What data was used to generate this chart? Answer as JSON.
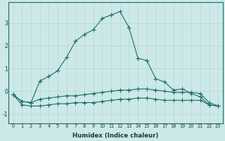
{
  "xlabel": "Humidex (Indice chaleur)",
  "ylabel": "",
  "background_color": "#cce8e8",
  "grid_color": "#b8d8d8",
  "line_color": "#1a6e64",
  "x_values": [
    0,
    1,
    2,
    3,
    4,
    5,
    6,
    7,
    8,
    9,
    10,
    11,
    12,
    13,
    14,
    15,
    16,
    17,
    18,
    19,
    20,
    21,
    22,
    23
  ],
  "series1": [
    -0.15,
    -0.45,
    -0.5,
    0.45,
    0.65,
    0.9,
    1.5,
    2.2,
    2.5,
    2.7,
    3.2,
    3.35,
    3.5,
    2.8,
    1.45,
    1.35,
    0.55,
    0.4,
    0.05,
    0.1,
    -0.1,
    -0.25,
    -0.6,
    -0.65
  ],
  "series2": [
    -0.15,
    -0.45,
    -0.5,
    -0.35,
    -0.3,
    -0.25,
    -0.2,
    -0.2,
    -0.15,
    -0.1,
    -0.05,
    -0.0,
    0.05,
    0.05,
    0.1,
    0.1,
    0.05,
    0.0,
    -0.05,
    -0.05,
    -0.05,
    -0.1,
    -0.5,
    -0.65
  ],
  "series3": [
    -0.15,
    -0.6,
    -0.65,
    -0.65,
    -0.6,
    -0.55,
    -0.55,
    -0.5,
    -0.5,
    -0.5,
    -0.45,
    -0.4,
    -0.35,
    -0.35,
    -0.3,
    -0.3,
    -0.35,
    -0.4,
    -0.4,
    -0.4,
    -0.4,
    -0.4,
    -0.6,
    -0.65
  ],
  "xlim": [
    -0.5,
    23.5
  ],
  "ylim": [
    -1.4,
    3.9
  ],
  "yticks": [
    -1,
    0,
    1,
    2,
    3
  ],
  "xticks": [
    0,
    1,
    2,
    3,
    4,
    5,
    6,
    7,
    8,
    9,
    10,
    11,
    12,
    13,
    14,
    15,
    16,
    17,
    18,
    19,
    20,
    21,
    22,
    23
  ],
  "spine_color": "#1a6e64",
  "tick_color": "#1a3a3a"
}
